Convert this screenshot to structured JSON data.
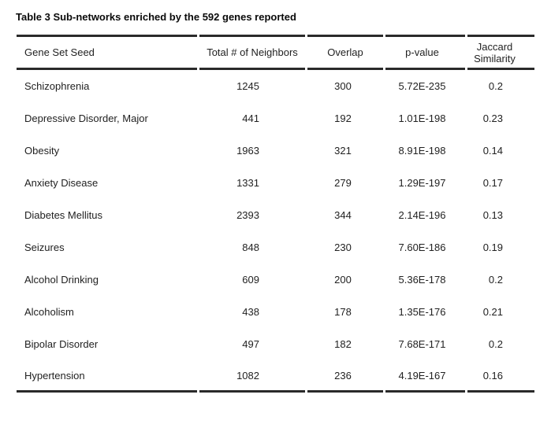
{
  "title": "Table 3 Sub-networks enriched by the 592 genes reported",
  "colors": {
    "rule": "#2a2a2a",
    "text": "#222222",
    "background": "#ffffff"
  },
  "table": {
    "columns": [
      {
        "label": "Gene Set Seed"
      },
      {
        "label": "Total # of Neighbors"
      },
      {
        "label": "Overlap"
      },
      {
        "label": "p-value"
      },
      {
        "label": "Jaccard Similarity"
      }
    ],
    "rows": [
      [
        "Schizophrenia",
        "1245",
        "300",
        "5.72E-235",
        "0.2"
      ],
      [
        "Depressive Disorder, Major",
        "441",
        "192",
        "1.01E-198",
        "0.23"
      ],
      [
        "Obesity",
        "1963",
        "321",
        "8.91E-198",
        "0.14"
      ],
      [
        "Anxiety Disease",
        "1331",
        "279",
        "1.29E-197",
        "0.17"
      ],
      [
        "Diabetes Mellitus",
        "2393",
        "344",
        "2.14E-196",
        "0.13"
      ],
      [
        "Seizures",
        "848",
        "230",
        "7.60E-186",
        "0.19"
      ],
      [
        "Alcohol Drinking",
        "609",
        "200",
        "5.36E-178",
        "0.2"
      ],
      [
        "Alcoholism",
        "438",
        "178",
        "1.35E-176",
        "0.21"
      ],
      [
        "Bipolar Disorder",
        "497",
        "182",
        "7.68E-171",
        "0.2"
      ],
      [
        "Hypertension",
        "1082",
        "236",
        "4.19E-167",
        "0.16"
      ]
    ]
  }
}
